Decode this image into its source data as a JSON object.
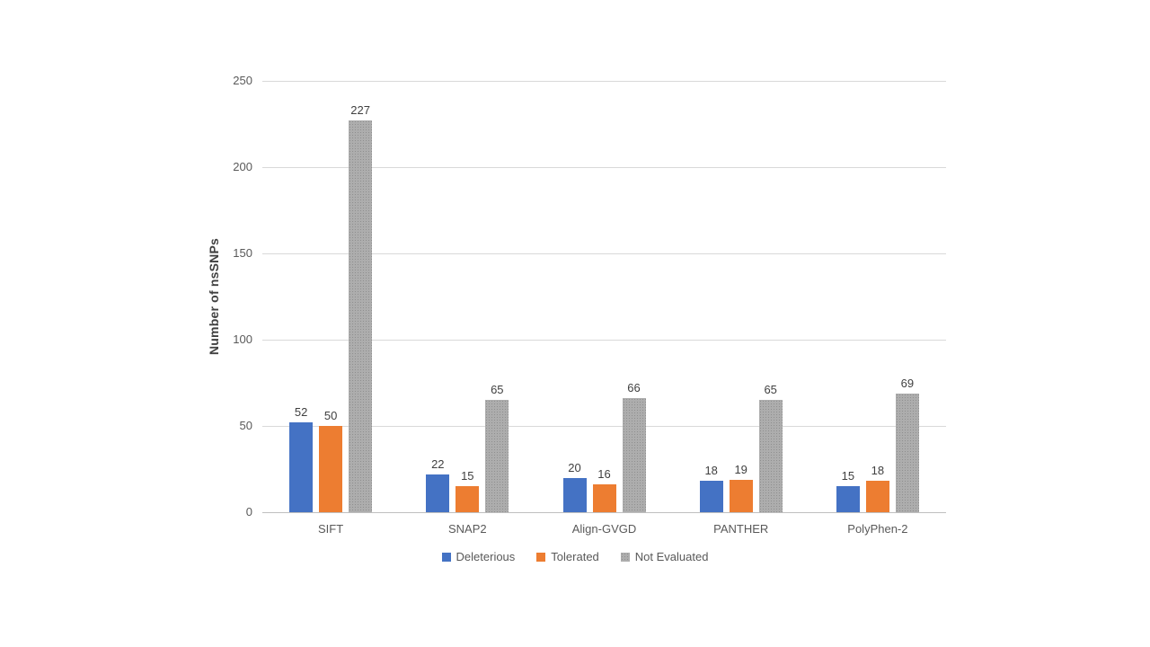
{
  "chart_data": {
    "type": "bar",
    "title": "",
    "xlabel": "",
    "ylabel": "Number of nsSNPs",
    "categories": [
      "SIFT",
      "SNAP2",
      "Align-GVGD",
      "PANTHER",
      "PolyPhen-2"
    ],
    "series": [
      {
        "name": "Deleterious",
        "color": "#4472C4",
        "texture": "solid",
        "values": [
          52,
          22,
          20,
          18,
          15
        ]
      },
      {
        "name": "Tolerated",
        "color": "#ED7D31",
        "texture": "solid",
        "values": [
          50,
          15,
          16,
          19,
          18
        ]
      },
      {
        "name": "Not Evaluated",
        "color": "#A6A6A6",
        "texture": "stipple",
        "values": [
          227,
          65,
          66,
          65,
          69
        ]
      }
    ],
    "ylim": [
      0,
      250
    ],
    "yticks": [
      0,
      50,
      100,
      150,
      200,
      250
    ],
    "grid": "horizontal",
    "legend_position": "bottom",
    "data_labels_shown": true,
    "colors": {
      "gridline": "#D9D9D9",
      "axis_line": "#BFBFBF",
      "tick_text": "#595959",
      "data_label_text": "#404040",
      "background": "#FFFFFF"
    }
  }
}
